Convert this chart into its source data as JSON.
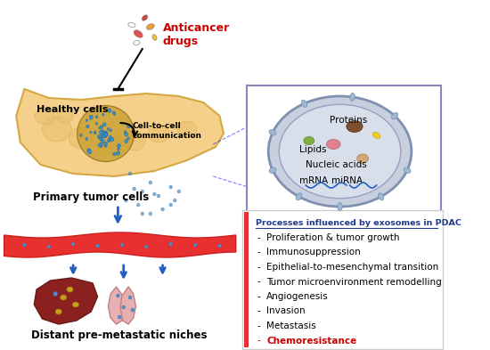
{
  "title": "",
  "background_color": "#ffffff",
  "anticancer_drugs_text": "Anticancer\ndrugs",
  "anticancer_drugs_color": "#cc0000",
  "healthy_cells_text": "Healthy cells",
  "cell_to_cell_text": "Cell-to-cell\ncommunication",
  "primary_tumor_text": "Primary tumor cells",
  "distant_text": "Distant pre-metastatic niches",
  "processes_title": "Processes influenced by exosomes in PDAC",
  "processes_title_color": "#1f3a8a",
  "processes_list": [
    "Proliferation & tumor growth",
    "Immunosuppression",
    "Epithelial-to-mesenchymal transition",
    "Tumor microenvironment remodelling",
    "Angiogenesis",
    "Invasion",
    "Metastasis",
    "Chemoresistance"
  ],
  "process_colors": [
    "#000000",
    "#000000",
    "#000000",
    "#000000",
    "#000000",
    "#000000",
    "#000000",
    "#cc0000"
  ],
  "exosome_labels": [
    "Proteins",
    "Lipids",
    "Nucleic acids",
    "mRNA",
    "miRNA"
  ],
  "liver_color": "#7b2a2a",
  "pancreas_color": "#f5d08a",
  "blood_vessel_color": "#e83030",
  "exosome_bg": "#d0d8e8",
  "box_border_color": "#aaaacc"
}
